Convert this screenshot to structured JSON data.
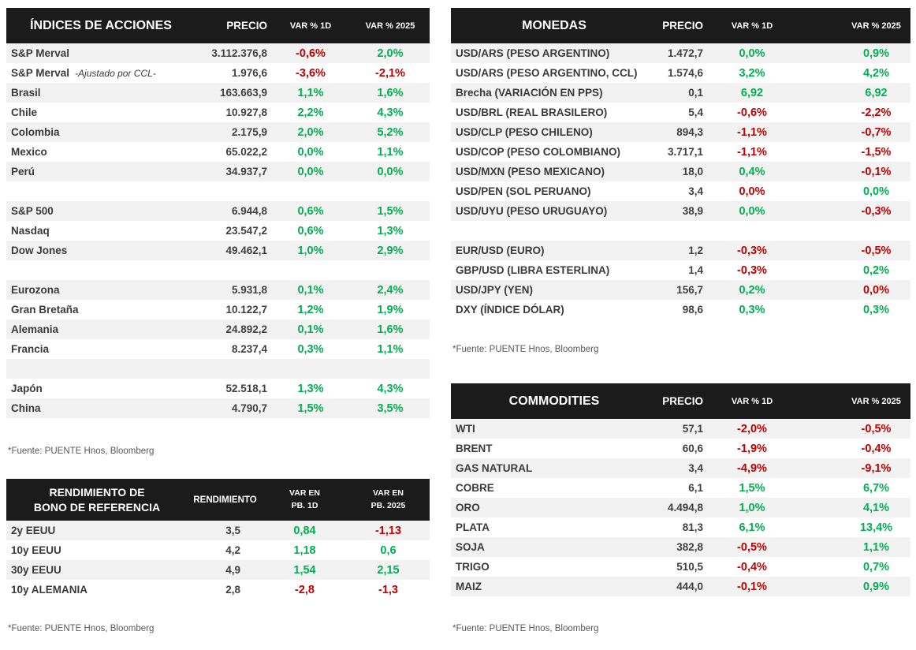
{
  "page": {
    "background": "#FFFFFF"
  },
  "colors": {
    "positive": "#00B050",
    "negative": "#C00000",
    "header_bg": "#1B1B1B",
    "header_text": "#FFFFFF",
    "row_stripe": "#F2F2F2",
    "label_text": "#3A3A3A",
    "footer_text": "#595959"
  },
  "source_note": "*Fuente: PUENTE Hnos, Bloomberg",
  "tables": {
    "indices": {
      "title": "ÍNDICES DE ACCIONES",
      "col_price": "PRECIO",
      "col_1d": "VAR % 1D",
      "col_2025": "VAR % 2025",
      "rows": [
        {
          "label": "S&P Merval",
          "price": "3.112.376,8",
          "var_1d": "-0,6%",
          "var_1d_color": "negative",
          "var_2025": "2,0%",
          "var_2025_color": "positive"
        },
        {
          "label": "S&P Merval",
          "note": "-Ajustado por CCL-",
          "price": "1.976,6",
          "var_1d": "-3,6%",
          "var_1d_color": "negative",
          "var_2025": "-2,1%",
          "var_2025_color": "negative"
        },
        {
          "label": "Brasil",
          "price": "163.663,9",
          "var_1d": "1,1%",
          "var_1d_color": "positive",
          "var_2025": "1,6%",
          "var_2025_color": "positive"
        },
        {
          "label": "Chile",
          "price": "10.927,8",
          "var_1d": "2,2%",
          "var_1d_color": "positive",
          "var_2025": "4,3%",
          "var_2025_color": "positive"
        },
        {
          "label": "Colombia",
          "price": "2.175,9",
          "var_1d": "2,0%",
          "var_1d_color": "positive",
          "var_2025": "5,2%",
          "var_2025_color": "positive"
        },
        {
          "label": "Mexico",
          "price": "65.022,2",
          "var_1d": "0,0%",
          "var_1d_color": "positive",
          "var_2025": "1,1%",
          "var_2025_color": "positive"
        },
        {
          "label": "Perú",
          "price": "34.937,7",
          "var_1d": "0,0%",
          "var_1d_color": "positive",
          "var_2025": "0,0%",
          "var_2025_color": "positive"
        },
        {
          "spacer": true
        },
        {
          "label": "S&P 500",
          "price": "6.944,8",
          "var_1d": "0,6%",
          "var_1d_color": "positive",
          "var_2025": "1,5%",
          "var_2025_color": "positive"
        },
        {
          "label": "Nasdaq",
          "price": "23.547,2",
          "var_1d": "0,6%",
          "var_1d_color": "positive",
          "var_2025": "1,3%",
          "var_2025_color": "positive"
        },
        {
          "label": "Dow Jones",
          "price": "49.462,1",
          "var_1d": "1,0%",
          "var_1d_color": "positive",
          "var_2025": "2,9%",
          "var_2025_color": "positive"
        },
        {
          "spacer": true
        },
        {
          "label": "Eurozona",
          "price": "5.931,8",
          "var_1d": "0,1%",
          "var_1d_color": "positive",
          "var_2025": "2,4%",
          "var_2025_color": "positive"
        },
        {
          "label": "Gran Bretaña",
          "price": "10.122,7",
          "var_1d": "1,2%",
          "var_1d_color": "positive",
          "var_2025": "1,9%",
          "var_2025_color": "positive"
        },
        {
          "label": "Alemania",
          "price": "24.892,2",
          "var_1d": "0,1%",
          "var_1d_color": "positive",
          "var_2025": "1,6%",
          "var_2025_color": "positive"
        },
        {
          "label": "Francia",
          "price": "8.237,4",
          "var_1d": "0,3%",
          "var_1d_color": "positive",
          "var_2025": "1,1%",
          "var_2025_color": "positive"
        },
        {
          "spacer": true
        },
        {
          "label": "Japón",
          "price": "52.518,1",
          "var_1d": "1,3%",
          "var_1d_color": "positive",
          "var_2025": "4,3%",
          "var_2025_color": "positive"
        },
        {
          "label": "China",
          "price": "4.790,7",
          "var_1d": "1,5%",
          "var_1d_color": "positive",
          "var_2025": "3,5%",
          "var_2025_color": "positive"
        }
      ]
    },
    "monedas": {
      "title": "MONEDAS",
      "col_price": "PRECIO",
      "col_1d": "VAR % 1D",
      "col_2025": "VAR % 2025",
      "rows": [
        {
          "label": "USD/ARS (PESO ARGENTINO)",
          "price": "1.472,7",
          "var_1d": "0,0%",
          "var_1d_color": "positive",
          "var_2025": "0,9%",
          "var_2025_color": "positive"
        },
        {
          "label": "USD/ARS (PESO ARGENTINO, CCL)",
          "price": "1.574,6",
          "var_1d": "3,2%",
          "var_1d_color": "positive",
          "var_2025": "4,2%",
          "var_2025_color": "positive"
        },
        {
          "label": "Brecha (VARIACIÓN EN PPS)",
          "price": "0,1",
          "var_1d": "6,92",
          "var_1d_color": "positive",
          "var_2025": "6,92",
          "var_2025_color": "positive"
        },
        {
          "label": "USD/BRL (REAL BRASILERO)",
          "price": "5,4",
          "var_1d": "-0,6%",
          "var_1d_color": "negative",
          "var_2025": "-2,2%",
          "var_2025_color": "negative"
        },
        {
          "label": "USD/CLP (PESO CHILENO)",
          "price": "894,3",
          "var_1d": "-1,1%",
          "var_1d_color": "negative",
          "var_2025": "-0,7%",
          "var_2025_color": "negative"
        },
        {
          "label": "USD/COP (PESO COLOMBIANO)",
          "price": "3.717,1",
          "var_1d": "-1,1%",
          "var_1d_color": "negative",
          "var_2025": "-1,5%",
          "var_2025_color": "negative"
        },
        {
          "label": "USD/MXN (PESO MEXICANO)",
          "price": "18,0",
          "var_1d": "0,4%",
          "var_1d_color": "positive",
          "var_2025": "-0,1%",
          "var_2025_color": "negative"
        },
        {
          "label": "USD/PEN (SOL PERUANO)",
          "price": "3,4",
          "var_1d": "0,0%",
          "var_1d_color": "negative",
          "var_2025": "0,0%",
          "var_2025_color": "positive"
        },
        {
          "label": "USD/UYU (PESO URUGUAYO)",
          "price": "38,9",
          "var_1d": "0,0%",
          "var_1d_color": "positive",
          "var_2025": "-0,3%",
          "var_2025_color": "negative"
        },
        {
          "spacer": true
        },
        {
          "label": "EUR/USD (EURO)",
          "price": "1,2",
          "var_1d": "-0,3%",
          "var_1d_color": "negative",
          "var_2025": "-0,5%",
          "var_2025_color": "negative"
        },
        {
          "label": "GBP/USD (LIBRA ESTERLINA)",
          "price": "1,4",
          "var_1d": "-0,3%",
          "var_1d_color": "negative",
          "var_2025": "0,2%",
          "var_2025_color": "positive"
        },
        {
          "label": "USD/JPY (YEN)",
          "price": "156,7",
          "var_1d": "0,2%",
          "var_1d_color": "positive",
          "var_2025": "0,0%",
          "var_2025_color": "negative"
        },
        {
          "label": "DXY (ÍNDICE DÓLAR)",
          "price": "98,6",
          "var_1d": "0,3%",
          "var_1d_color": "positive",
          "var_2025": "0,3%",
          "var_2025_color": "positive"
        }
      ]
    },
    "bonos": {
      "title_line1": "RENDIMIENTO DE",
      "title_line2": "BONO DE REFERENCIA",
      "col_rend": "RENDIMIENTO",
      "col_1d_line1": "VAR EN",
      "col_1d_line2": "PB. 1D",
      "col_2025_line1": "VAR EN",
      "col_2025_line2": "PB. 2025",
      "rows": [
        {
          "label": "2y EEUU",
          "price": "3,5",
          "var_1d": "0,84",
          "var_1d_color": "positive",
          "var_2025": "-1,13",
          "var_2025_color": "negative"
        },
        {
          "label": "10y EEUU",
          "price": "4,2",
          "var_1d": "1,18",
          "var_1d_color": "positive",
          "var_2025": "0,6",
          "var_2025_color": "positive"
        },
        {
          "label": "30y EEUU",
          "price": "4,9",
          "var_1d": "1,54",
          "var_1d_color": "positive",
          "var_2025": "2,15",
          "var_2025_color": "positive"
        },
        {
          "label": "10y ALEMANIA",
          "price": "2,8",
          "var_1d": "-2,8",
          "var_1d_color": "negative",
          "var_2025": "-1,3",
          "var_2025_color": "negative"
        }
      ]
    },
    "commodities": {
      "title": "COMMODITIES",
      "col_price": "PRECIO",
      "col_1d": "VAR % 1D",
      "col_2025": "VAR % 2025",
      "rows": [
        {
          "label": "WTI",
          "price": "57,1",
          "var_1d": "-2,0%",
          "var_1d_color": "negative",
          "var_2025": "-0,5%",
          "var_2025_color": "negative"
        },
        {
          "label": "BRENT",
          "price": "60,6",
          "var_1d": "-1,9%",
          "var_1d_color": "negative",
          "var_2025": "-0,4%",
          "var_2025_color": "negative"
        },
        {
          "label": "GAS NATURAL",
          "price": "3,4",
          "var_1d": "-4,9%",
          "var_1d_color": "negative",
          "var_2025": "-9,1%",
          "var_2025_color": "negative"
        },
        {
          "label": "COBRE",
          "price": "6,1",
          "var_1d": "1,5%",
          "var_1d_color": "positive",
          "var_2025": "6,7%",
          "var_2025_color": "positive"
        },
        {
          "label": "ORO",
          "price": "4.494,8",
          "var_1d": "1,0%",
          "var_1d_color": "positive",
          "var_2025": "4,1%",
          "var_2025_color": "positive"
        },
        {
          "label": "PLATA",
          "price": "81,3",
          "var_1d": "6,1%",
          "var_1d_color": "positive",
          "var_2025": "13,4%",
          "var_2025_color": "positive"
        },
        {
          "label": "SOJA",
          "price": "382,8",
          "var_1d": "-0,5%",
          "var_1d_color": "negative",
          "var_2025": "1,1%",
          "var_2025_color": "positive"
        },
        {
          "label": "TRIGO",
          "price": "510,5",
          "var_1d": "-0,4%",
          "var_1d_color": "negative",
          "var_2025": "0,7%",
          "var_2025_color": "positive"
        },
        {
          "label": "MAIZ",
          "price": "444,0",
          "var_1d": "-0,1%",
          "var_1d_color": "negative",
          "var_2025": "0,9%",
          "var_2025_color": "positive"
        }
      ]
    }
  }
}
